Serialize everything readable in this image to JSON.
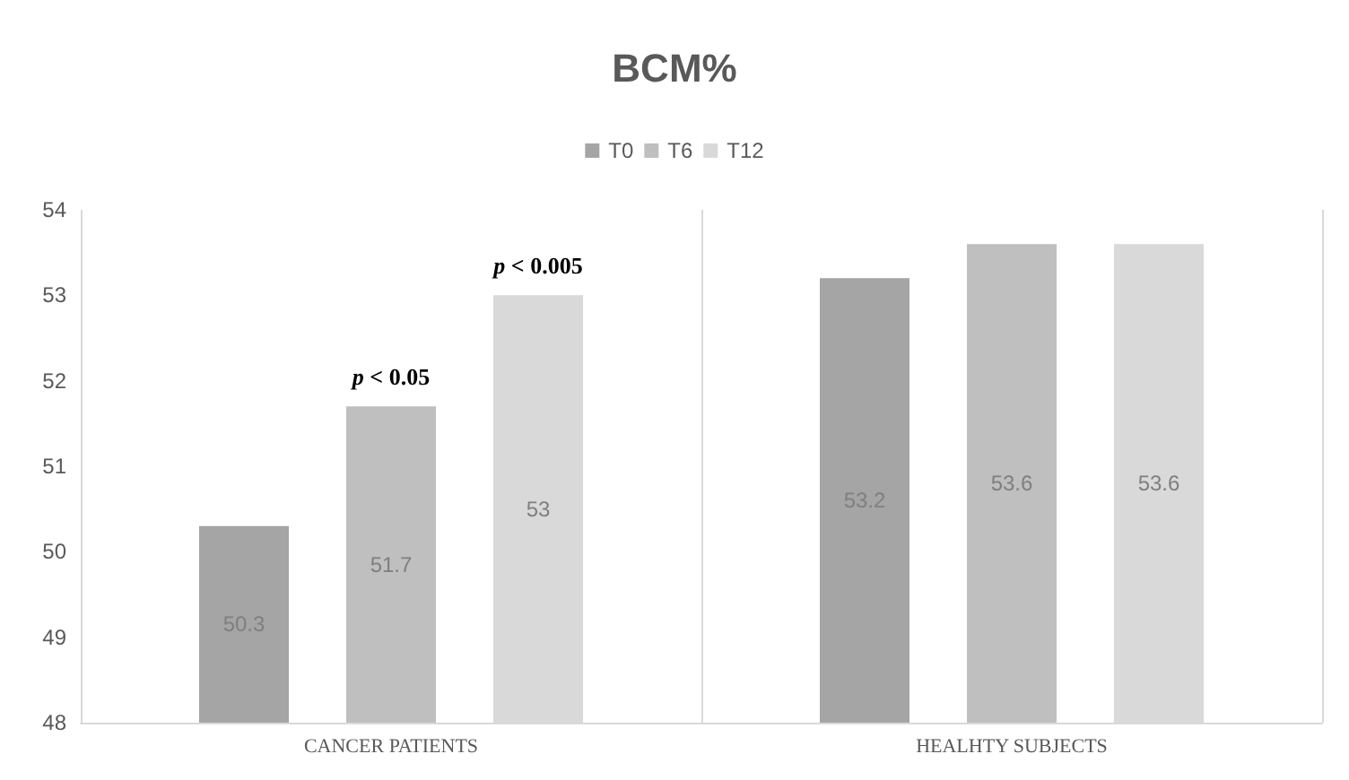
{
  "chart_data": {
    "type": "bar",
    "title": "BCM%",
    "categories": [
      "CANCER PATIENTS",
      "HEALHTY SUBJECTS"
    ],
    "series": [
      {
        "name": "T0",
        "color": "#a5a5a5",
        "values": [
          50.3,
          53.2
        ]
      },
      {
        "name": "T6",
        "color": "#bfbfbf",
        "values": [
          51.7,
          53.6
        ]
      },
      {
        "name": "T12",
        "color": "#d9d9d9",
        "values": [
          53,
          53.6
        ]
      }
    ],
    "ylim": [
      48,
      54
    ],
    "yticks": [
      48,
      49,
      50,
      51,
      52,
      53,
      54
    ],
    "grid": "x",
    "legend": "top",
    "data_labels": true,
    "annotations": [
      "p < 0.05",
      "p < 0.005"
    ]
  }
}
